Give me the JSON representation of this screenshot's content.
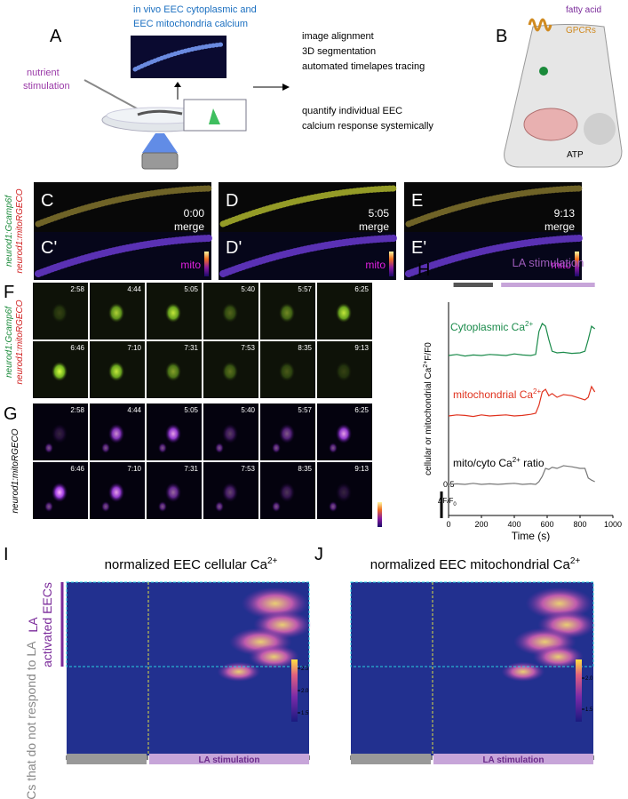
{
  "a": {
    "label": "A",
    "title": [
      "in vivo EEC cytoplasmic and",
      "EEC mitochondria calcium"
    ],
    "stimulation": [
      "nutrient",
      "stimulation"
    ],
    "steps": [
      "image alignment",
      "3D segmentation",
      "automated timelapes tracing"
    ],
    "quantify": [
      "quantify individual EEC",
      "calcium response systemically"
    ]
  },
  "b": {
    "label": "B",
    "fatty_acid": "fatty acid",
    "gpcrs": "GPCRs",
    "atp": "ATP"
  },
  "c": {
    "labels": [
      "C",
      "D",
      "E"
    ],
    "prime_labels": [
      "C'",
      "D'",
      "E'"
    ],
    "times": [
      "0:00",
      "5:05",
      "9:13"
    ],
    "merge": "merge",
    "mito": "mito",
    "gcamp": "neurod1:Gcamp6f",
    "mitorgeco": "neurod1:mitoRGECO"
  },
  "f": {
    "label": "F",
    "times": [
      "2:58",
      "4:44",
      "5:05",
      "5:40",
      "5:57",
      "6:25",
      "6:46",
      "7:10",
      "7:31",
      "7:53",
      "8:35",
      "9:13"
    ],
    "gcamp": "neurod1:Gcamp6f",
    "mitorgeco": "neurod1:mitoRGECO"
  },
  "g": {
    "label": "G",
    "times": [
      "2:58",
      "4:44",
      "5:05",
      "5:40",
      "5:57",
      "6:25",
      "6:46",
      "7:10",
      "7:31",
      "7:53",
      "8:35",
      "9:13"
    ],
    "mitorgeco": "neurod1:mitoRGECO"
  },
  "h": {
    "label": "H",
    "chart_data": {
      "type": "line",
      "stimulation_label": "LA stimulation",
      "control_period": [
        30,
        270
      ],
      "stimulation_period": [
        320,
        890
      ],
      "x_label": "Time (s)",
      "y_label": [
        "cellular or mitochondrial Ca",
        "2+",
        "F/F0"
      ],
      "xlim": [
        0,
        1000
      ],
      "xticks": [
        0,
        200,
        400,
        600,
        800,
        1000
      ],
      "scale_bar": 0.5,
      "scale_label": [
        "ΔF/F",
        "0"
      ],
      "x": [
        0,
        50,
        100,
        150,
        200,
        250,
        300,
        350,
        400,
        450,
        500,
        530,
        550,
        570,
        590,
        610,
        630,
        660,
        700,
        750,
        800,
        830,
        850,
        870,
        890
      ],
      "series": [
        {
          "name": [
            "Cytoplasmic Ca",
            "2+",
            ""
          ],
          "color": "#1a8a4a",
          "values": [
            0,
            0.02,
            -0.01,
            0.01,
            0,
            0.02,
            0.01,
            0,
            0.03,
            0.01,
            0,
            0.02,
            0.45,
            0.6,
            0.55,
            0.3,
            0.08,
            0.05,
            0.06,
            0.04,
            0.05,
            0.08,
            0.3,
            0.55,
            0.5
          ]
        },
        {
          "name": [
            "mitochondrial Ca",
            "2+",
            ""
          ],
          "color": "#e0321e",
          "values": [
            0,
            0.02,
            0.01,
            -0.01,
            0.02,
            0,
            0.01,
            0.02,
            0,
            0.01,
            0.03,
            0.05,
            0.2,
            0.45,
            0.5,
            0.38,
            0.42,
            0.35,
            0.4,
            0.38,
            0.33,
            0.3,
            0.35,
            0.55,
            0.45
          ]
        },
        {
          "name": [
            "mito/cyto Ca",
            "2+",
            " ratio"
          ],
          "color": "#777777",
          "values": [
            0,
            0.01,
            0,
            0.02,
            0,
            0.01,
            0,
            0.01,
            0.02,
            0,
            0.01,
            0,
            0.05,
            0.15,
            0.3,
            0.28,
            0.32,
            0.3,
            0.35,
            0.33,
            0.3,
            0.3,
            0.12,
            0.08,
            0.05
          ]
        }
      ]
    }
  },
  "i": {
    "label": "I",
    "title": [
      "normalized EEC cellular Ca",
      "2+"
    ],
    "group_la": "LA",
    "group_activated": "activated EECs",
    "group_other": "EECs that do not respond to LA",
    "stimulation": "LA stimulation",
    "colorbar_lim": [
      1.3,
      2.7
    ],
    "colorbar_ticks": [
      2.5,
      {
        "value": 2,
        "label": "2.0"
      },
      1.5
    ]
  },
  "j": {
    "label": "J",
    "title": [
      "normalized EEC mitochondrial Ca",
      "2+"
    ],
    "stimulation": "LA stimulation",
    "colorbar_lim": [
      1.3,
      2.3
    ],
    "colorbar_ticks": [
      {
        "value": 2,
        "label": "2.0"
      },
      1.5
    ]
  }
}
